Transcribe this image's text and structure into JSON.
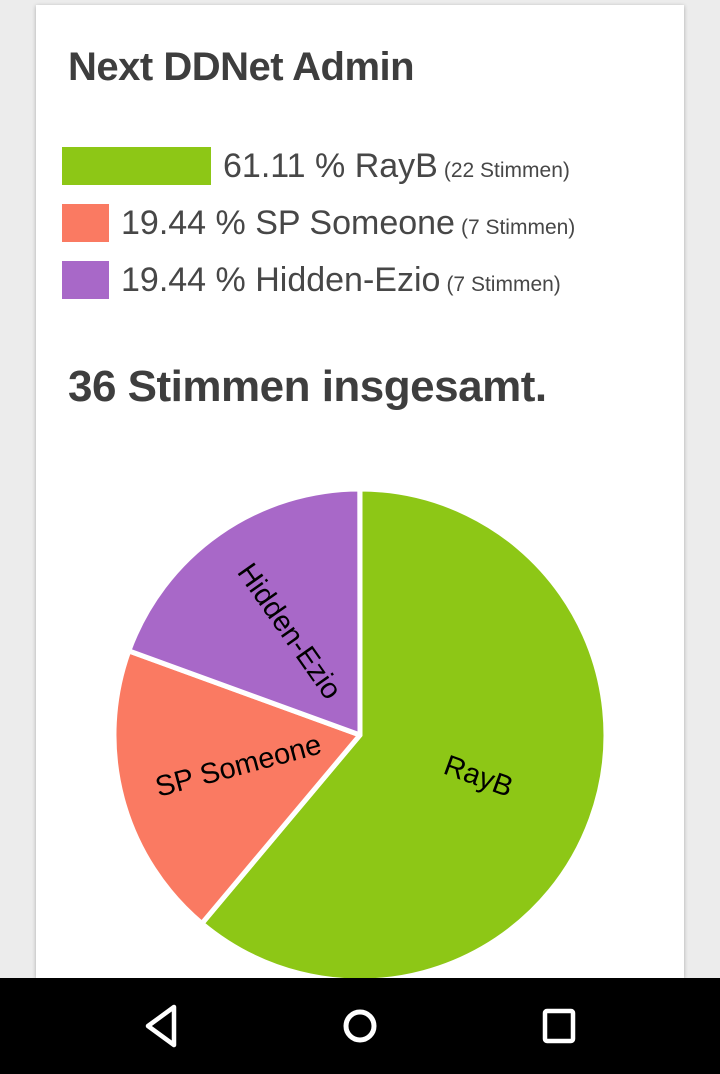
{
  "poll": {
    "title": "Next DDNet Admin",
    "total": "36 Stimmen insgesamt.",
    "legend": [
      {
        "percent": "61.11 %",
        "name": "RayB",
        "votes": "(22 Stimmen)",
        "color": "#8dc716",
        "value": 61.11
      },
      {
        "percent": "19.44 %",
        "name": "SP Someone",
        "votes": "(7 Stimmen)",
        "color": "#fa7a62",
        "value": 19.44
      },
      {
        "percent": "19.44 %",
        "name": "Hidden-Ezio",
        "votes": "(7 Stimmen)",
        "color": "#a868c8",
        "value": 19.44
      }
    ]
  },
  "chart_data": {
    "type": "pie",
    "title": "Next DDNet Admin",
    "categories": [
      "RayB",
      "SP Someone",
      "Hidden-Ezio"
    ],
    "values": [
      61.11,
      19.44,
      19.44
    ],
    "votes": [
      22,
      7,
      7
    ],
    "total_votes": 36,
    "colors": [
      "#8dc716",
      "#fa7a62",
      "#a868c8"
    ],
    "start_angle_deg": 0,
    "direction": "clockwise",
    "slice_border_color": "#ffffff",
    "label_color": "#000000",
    "labels_inside": true
  },
  "nav_bar": {
    "background": "#000000",
    "icon_color": "#ffffff",
    "buttons": [
      "back",
      "home",
      "recents"
    ]
  },
  "page": {
    "background": "#ececec",
    "card_background": "#ffffff"
  }
}
